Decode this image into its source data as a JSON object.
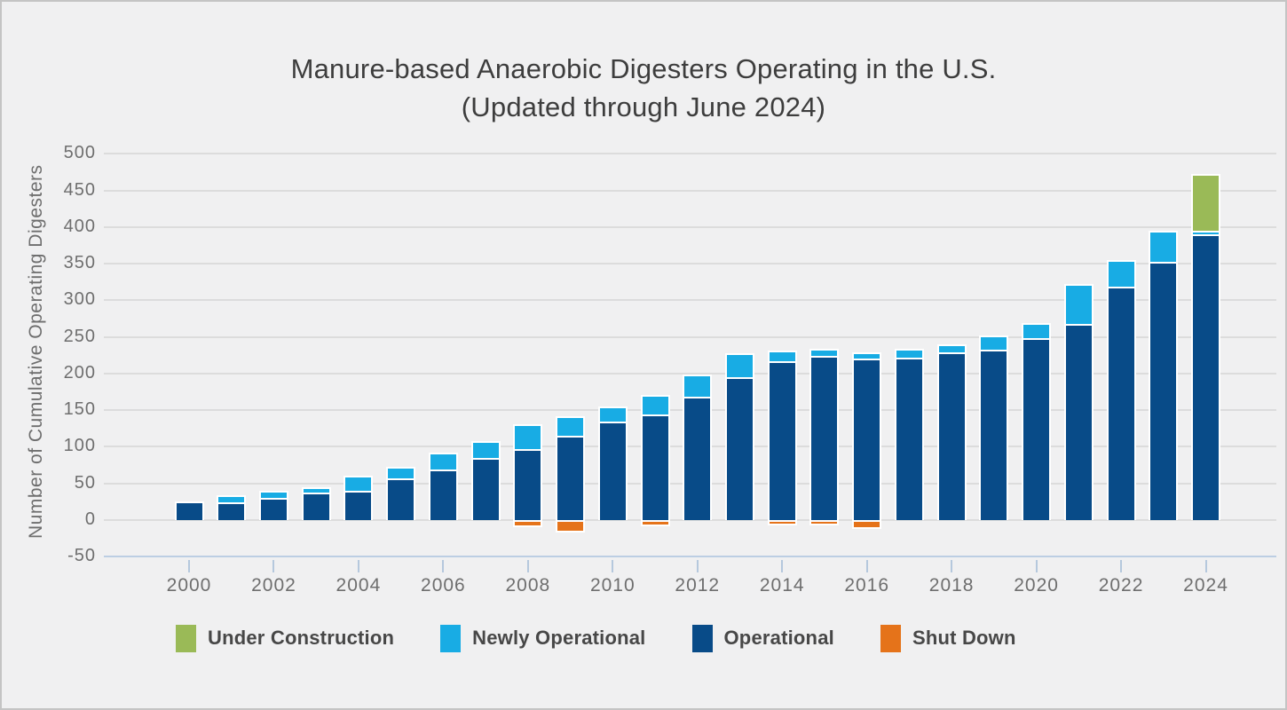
{
  "title": {
    "line1": "Manure-based Anaerobic Digesters Operating in the U.S.",
    "line2": "(Updated through June 2024)"
  },
  "y_axis": {
    "label": "Number of Cumulative Operating Digesters",
    "ticks": [
      500,
      450,
      400,
      350,
      300,
      250,
      200,
      150,
      100,
      50,
      0,
      -50
    ]
  },
  "x_axis": {
    "ticks": [
      2000,
      2002,
      2004,
      2006,
      2008,
      2010,
      2012,
      2014,
      2016,
      2018,
      2020,
      2022,
      2024
    ]
  },
  "legend": {
    "items": [
      {
        "label": "Under Construction",
        "color": "#9aba57"
      },
      {
        "label": "Newly Operational",
        "color": "#18ace4"
      },
      {
        "label": "Operational",
        "color": "#084b88"
      },
      {
        "label": "Shut Down",
        "color": "#e5731a"
      }
    ]
  },
  "colors": {
    "background": "#f0f0f1",
    "gridline": "#dcdcdc",
    "axis_spine": "#bccee3",
    "title_text": "#3d3d3d",
    "axis_text": "#6e6e6e",
    "legend_text": "#474747",
    "bar_stroke": "#ffffff"
  },
  "chart_data": {
    "type": "bar",
    "stacked": true,
    "title": "Manure-based Anaerobic Digesters Operating in the U.S. (Updated through June 2024)",
    "ylabel": "Number of Cumulative Operating Digesters",
    "ylim": [
      -50,
      500
    ],
    "y_tick_step": 50,
    "grid": true,
    "legend_position": "bottom",
    "years": [
      2000,
      2001,
      2002,
      2003,
      2004,
      2005,
      2006,
      2007,
      2008,
      2009,
      2010,
      2011,
      2012,
      2013,
      2014,
      2015,
      2016,
      2017,
      2018,
      2019,
      2020,
      2021,
      2022,
      2023,
      2024
    ],
    "series": [
      {
        "name": "Operational",
        "color": "#084b88",
        "values": [
          23,
          24,
          30,
          37,
          40,
          57,
          69,
          85,
          97,
          115,
          134,
          144,
          168,
          195,
          217,
          224,
          221,
          222,
          229,
          233,
          248,
          268,
          318,
          352,
          390
        ]
      },
      {
        "name": "Newly Operational",
        "color": "#18ace4",
        "values": [
          0,
          7,
          7,
          5,
          18,
          13,
          21,
          20,
          31,
          24,
          19,
          24,
          28,
          30,
          12,
          7,
          5,
          9,
          9,
          17,
          19,
          52,
          34,
          40,
          5
        ]
      },
      {
        "name": "Under Construction",
        "color": "#9aba57",
        "values": [
          0,
          0,
          0,
          0,
          0,
          0,
          0,
          0,
          0,
          0,
          0,
          0,
          0,
          0,
          0,
          0,
          0,
          0,
          0,
          0,
          0,
          0,
          0,
          0,
          75
        ]
      },
      {
        "name": "Shut Down",
        "color": "#e5731a",
        "values": [
          0,
          0,
          0,
          0,
          0,
          0,
          0,
          0,
          -5,
          -12,
          0,
          -4,
          0,
          0,
          -3,
          -3,
          -7,
          0,
          0,
          0,
          0,
          0,
          0,
          0,
          0
        ]
      }
    ]
  }
}
